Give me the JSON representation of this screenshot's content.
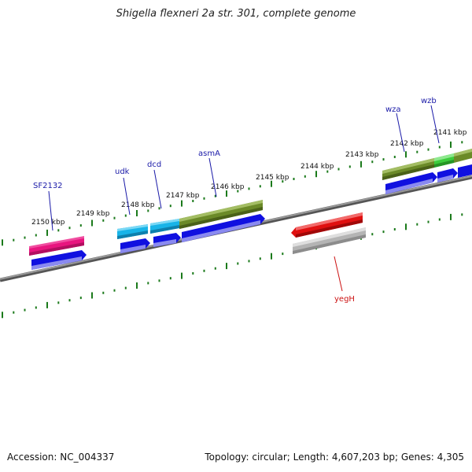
{
  "title": "Shigella flexneri 2a str. 301, complete genome",
  "footer": {
    "accession": "Accession: NC_004337",
    "summary": "Topology: circular; Length: 4,607,203 bp; Genes: 4,305"
  },
  "colors": {
    "backbone": "#7f7f7f",
    "tick": "#1b7a1b",
    "cds_blue": "#1010e0",
    "forward_label": "#1a1aa8",
    "reverse_label": "#cc1111",
    "pink": "#e8157f",
    "cyan": "#18b4e8",
    "olive": "#6b8a28",
    "green": "#3ccc3c",
    "red": "#e01010",
    "grey": "#b4b4b4"
  },
  "kbp_labels": [
    "2150 kbp",
    "2149 kbp",
    "2148 kbp",
    "2147 kbp",
    "2146 kbp",
    "2145 kbp",
    "2144 kbp",
    "2143 kbp",
    "2142 kbp",
    "2141 kbp"
  ],
  "genes": [
    {
      "name": "SF2132",
      "strand": "forward",
      "color": "pink"
    },
    {
      "name": "udk",
      "strand": "forward",
      "color": "cyan"
    },
    {
      "name": "dcd",
      "strand": "forward",
      "color": "cyan"
    },
    {
      "name": "asmA",
      "strand": "forward",
      "color": "olive"
    },
    {
      "name": "wza",
      "strand": "forward",
      "color": "olive"
    },
    {
      "name": "wzb",
      "strand": "forward",
      "color": "green"
    },
    {
      "name": "yegH",
      "strand": "reverse",
      "color": "red"
    }
  ]
}
